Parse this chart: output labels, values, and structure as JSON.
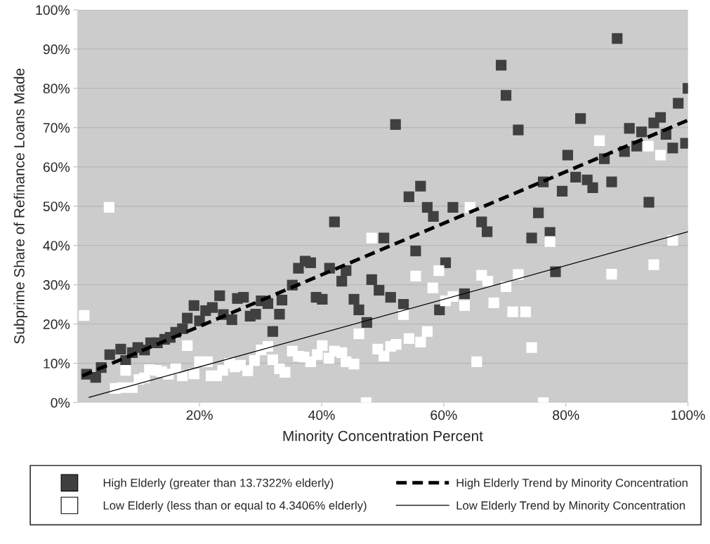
{
  "chart_data": {
    "type": "scatter",
    "xlabel": "Minority Concentration Percent",
    "ylabel": "Subprime Share of Refinance Loans Made",
    "xlim": [
      0,
      100
    ],
    "xticks": [
      {
        "value": 20,
        "label": "20%"
      },
      {
        "value": 40,
        "label": "40%"
      },
      {
        "value": 60,
        "label": "60%"
      },
      {
        "value": 80,
        "label": "80%"
      },
      {
        "value": 100,
        "label": "100%"
      }
    ],
    "ylim": [
      0,
      100
    ],
    "yticks": [
      {
        "value": 0,
        "label": "0%"
      },
      {
        "value": 10,
        "label": "10%"
      },
      {
        "value": 20,
        "label": "20%"
      },
      {
        "value": 30,
        "label": "30%"
      },
      {
        "value": 40,
        "label": "40%"
      },
      {
        "value": 50,
        "label": "50%"
      },
      {
        "value": 60,
        "label": "60%"
      },
      {
        "value": 70,
        "label": "70%"
      },
      {
        "value": 80,
        "label": "80%"
      },
      {
        "value": 90,
        "label": "90%"
      },
      {
        "value": 100,
        "label": "100%"
      }
    ],
    "grid": "y",
    "legend": "bottom",
    "marker": "square",
    "series": [
      {
        "name": "High Elderly (greater than 13.7322% elderly)",
        "color": "#404040",
        "x": [
          1.5,
          3.0,
          3.9,
          5.3,
          7.1,
          7.9,
          9.0,
          9.9,
          11.0,
          12.0,
          13.1,
          14.3,
          15.2,
          16.1,
          17.2,
          18.0,
          19.1,
          20.0,
          21.0,
          22.1,
          23.3,
          23.9,
          25.3,
          26.2,
          27.2,
          28.3,
          29.2,
          30.1,
          31.2,
          32.0,
          33.1,
          33.5,
          35.2,
          36.2,
          37.3,
          38.2,
          39.1,
          40.1,
          41.3,
          42.1,
          43.3,
          44.0,
          45.3,
          46.1,
          47.4,
          48.2,
          49.4,
          50.2,
          51.3,
          52.1,
          53.4,
          54.3,
          55.4,
          56.2,
          57.3,
          58.3,
          59.3,
          60.3,
          61.5,
          63.4,
          66.2,
          67.1,
          69.4,
          70.2,
          72.2,
          74.4,
          75.5,
          76.3,
          77.4,
          78.3,
          79.4,
          80.3,
          81.6,
          82.4,
          83.5,
          84.4,
          86.3,
          87.5,
          88.4,
          89.6,
          90.4,
          91.6,
          92.4,
          93.6,
          94.4,
          95.5,
          96.4,
          97.5,
          98.4,
          99.6,
          100
        ],
        "values": [
          7.2,
          6.4,
          8.9,
          12.2,
          13.6,
          10.7,
          12.7,
          14.0,
          13.4,
          15.2,
          15.2,
          16.1,
          16.6,
          17.9,
          18.8,
          21.5,
          24.7,
          20.8,
          23.4,
          24.2,
          27.2,
          22.4,
          21.1,
          26.5,
          26.8,
          22.0,
          22.5,
          25.9,
          25.2,
          18.1,
          22.5,
          26.1,
          29.9,
          34.2,
          36.0,
          35.6,
          26.8,
          26.3,
          34.2,
          46.0,
          30.9,
          33.6,
          26.3,
          23.6,
          20.4,
          31.3,
          28.6,
          41.9,
          26.8,
          70.8,
          25.0,
          52.4,
          38.6,
          55.1,
          49.7,
          47.4,
          23.6,
          35.6,
          49.7,
          27.7,
          46.0,
          43.5,
          85.9,
          78.2,
          69.4,
          41.9,
          48.3,
          56.2,
          43.3,
          33.3,
          53.8,
          63.0,
          57.4,
          72.3,
          56.7,
          54.7,
          62.1,
          56.2,
          92.7,
          63.9,
          69.8,
          65.3,
          68.9,
          51.0,
          71.2,
          72.6,
          68.3,
          64.8,
          76.2,
          66.0,
          80.0
        ]
      },
      {
        "name": "Low Elderly (less than or equal to 4.3406% elderly)",
        "color": "#ffffff",
        "x": [
          1.1,
          5.2,
          6.2,
          7.3,
          7.9,
          9.0,
          10.1,
          11.0,
          11.8,
          12.9,
          13.8,
          14.9,
          16.1,
          17.2,
          18.0,
          19.1,
          20.0,
          21.3,
          21.9,
          22.8,
          23.8,
          24.9,
          25.8,
          26.7,
          27.9,
          29.0,
          30.1,
          31.2,
          32.0,
          33.1,
          34.0,
          35.2,
          36.2,
          37.1,
          38.2,
          39.3,
          40.1,
          41.2,
          42.1,
          43.3,
          44.0,
          45.3,
          46.1,
          47.3,
          48.2,
          49.2,
          50.2,
          51.3,
          52.2,
          53.4,
          54.3,
          55.4,
          56.2,
          57.3,
          58.2,
          59.2,
          60.3,
          61.5,
          63.4,
          64.3,
          65.4,
          66.2,
          67.2,
          68.2,
          70.2,
          71.3,
          72.2,
          73.4,
          74.4,
          76.3,
          77.4,
          85.5,
          87.5,
          93.5,
          94.4,
          95.5,
          97.5
        ],
        "values": [
          22.2,
          49.7,
          3.6,
          3.8,
          8.2,
          3.8,
          5.9,
          6.3,
          8.4,
          8.2,
          7.9,
          7.2,
          8.6,
          6.8,
          14.5,
          7.3,
          10.4,
          10.4,
          6.8,
          6.8,
          8.2,
          10.0,
          9.1,
          9.5,
          8.1,
          10.7,
          13.4,
          14.3,
          10.9,
          8.6,
          7.7,
          13.1,
          11.8,
          11.6,
          10.4,
          12.2,
          14.5,
          11.3,
          13.1,
          12.7,
          10.4,
          9.8,
          17.5,
          0,
          41.9,
          13.6,
          11.8,
          14.3,
          14.8,
          22.4,
          16.3,
          32.2,
          15.4,
          18.1,
          29.2,
          33.6,
          25.9,
          27.0,
          24.7,
          49.7,
          10.4,
          32.4,
          30.9,
          25.4,
          29.5,
          23.1,
          32.6,
          23.1,
          14.0,
          0,
          41.0,
          66.7,
          32.7,
          65.3,
          35.1,
          63.0,
          41.3
        ]
      },
      {
        "name": "High Elderly Trend by Minority Concentration",
        "color": "#000000",
        "type": "line",
        "line_style": "dashed",
        "marker": "none",
        "x": [
          0.8,
          100
        ],
        "values": [
          6.8,
          71.9
        ]
      },
      {
        "name": "Low Elderly Trend by Minority Concentration",
        "color": "#000000",
        "type": "line",
        "line_style": "solid",
        "marker": "none",
        "x": [
          1.9,
          100
        ],
        "values": [
          1.3,
          43.5
        ]
      }
    ]
  }
}
